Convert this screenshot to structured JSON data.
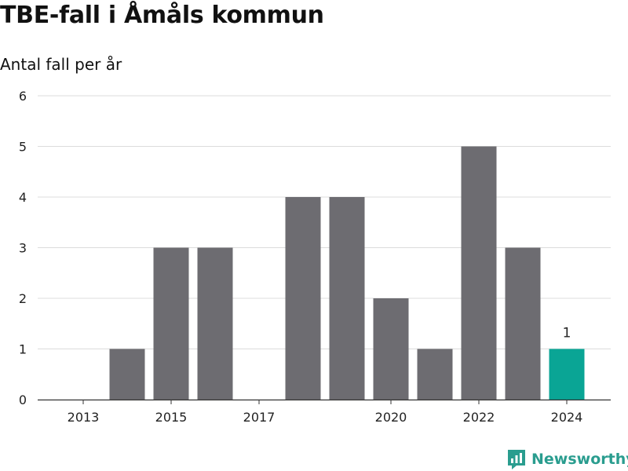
{
  "title": "TBE-fall i Åmåls kommun",
  "subtitle": "Antal fall per år",
  "brand": {
    "name": "Newsworthy",
    "icon": "newsworthy-logo-icon"
  },
  "colors": {
    "bar": "#6d6c71",
    "highlight": "#0aa595",
    "grid": "#dcdcdc",
    "axis": "#333333",
    "text": "#222222"
  },
  "chart_data": {
    "type": "bar",
    "title": "TBE-fall i Åmåls kommun",
    "subtitle": "Antal fall per år",
    "xlabel": "",
    "ylabel": "",
    "categories": [
      "2013",
      "2014",
      "2015",
      "2016",
      "2017",
      "2018",
      "2019",
      "2020",
      "2021",
      "2022",
      "2023",
      "2024"
    ],
    "values": [
      0,
      1,
      3,
      3,
      0,
      4,
      4,
      2,
      1,
      5,
      3,
      1
    ],
    "x_tick_labels": [
      "2013",
      "2015",
      "2017",
      "2020",
      "2022",
      "2024"
    ],
    "y_ticks": [
      0,
      1,
      2,
      3,
      4,
      5,
      6
    ],
    "ylim": [
      0,
      6
    ],
    "grid": true,
    "highlight": {
      "category": "2024",
      "data_label": "1"
    }
  }
}
